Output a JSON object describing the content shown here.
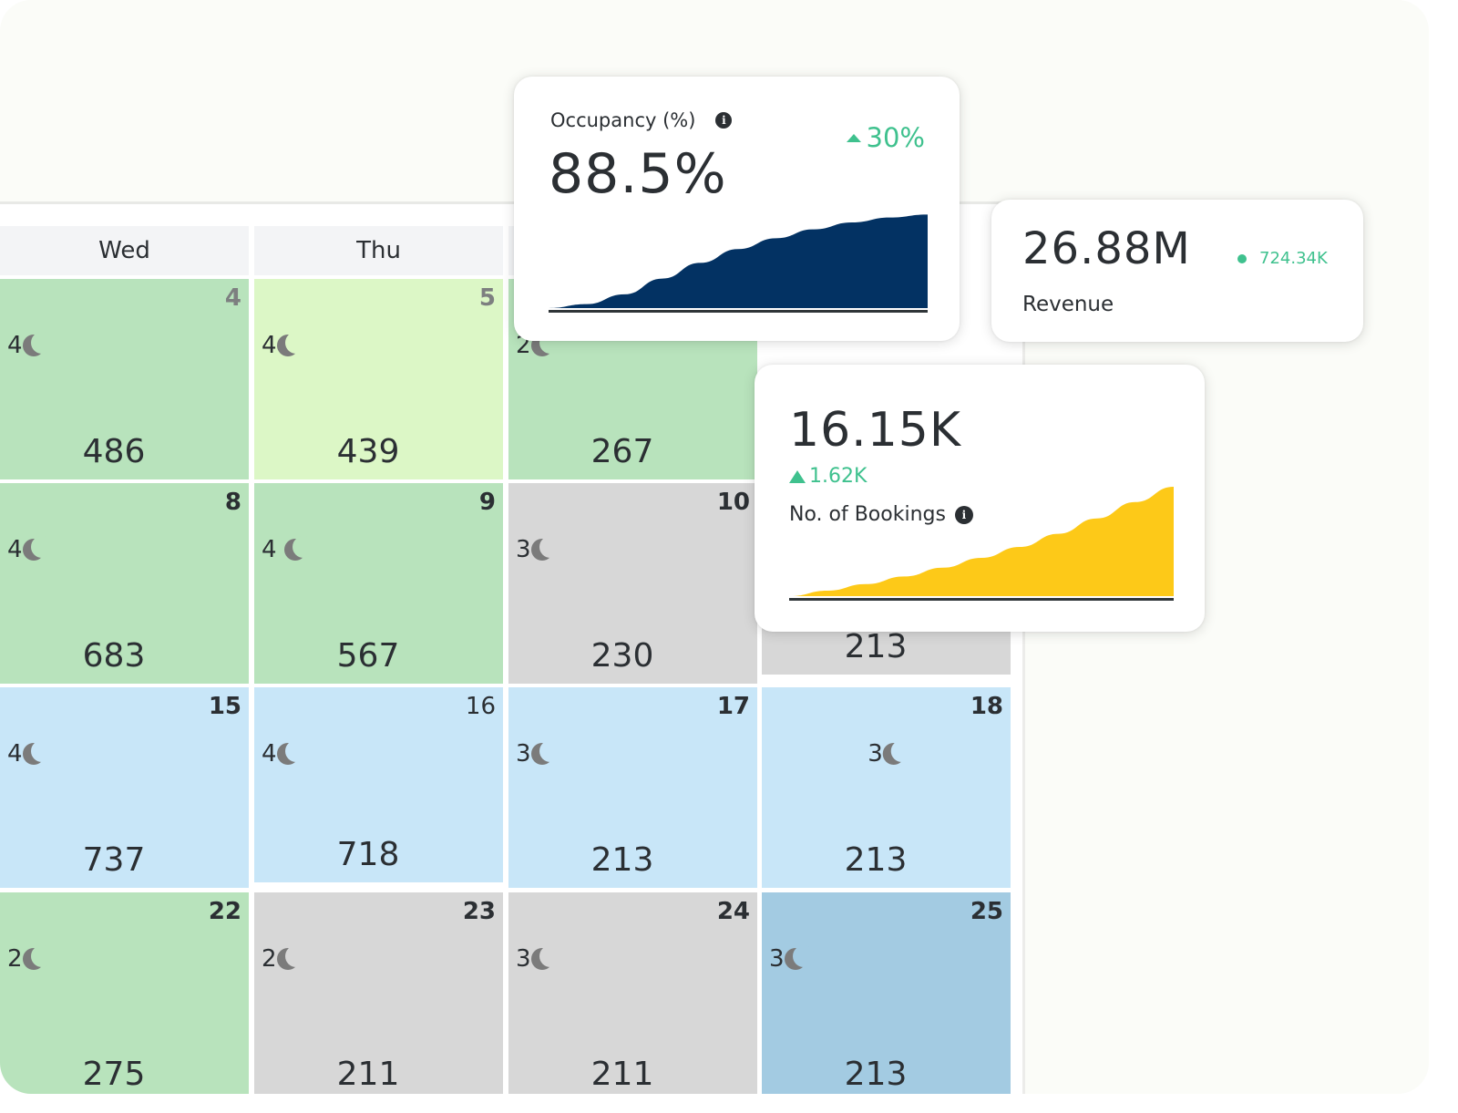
{
  "calendar": {
    "columns": [
      "Wed",
      "Thu"
    ],
    "weeks": [
      [
        {
          "day": "4",
          "nights": "4",
          "price": "486",
          "color": "green",
          "day_style": "muted"
        },
        {
          "day": "5",
          "nights": "4",
          "price": "439",
          "color": "lime",
          "day_style": "muted"
        },
        {
          "day": "",
          "nights": "2",
          "price": "267",
          "color": "green",
          "day_style": ""
        }
      ],
      [
        {
          "day": "8",
          "nights": "4",
          "price": "683",
          "color": "green",
          "day_style": ""
        },
        {
          "day": "9",
          "nights": "4",
          "price": "567",
          "color": "green",
          "day_style": ""
        },
        {
          "day": "10",
          "nights": "3",
          "price": "230",
          "color": "gray",
          "day_style": ""
        },
        {
          "day": "",
          "nights": "",
          "price": "213",
          "color": "gray",
          "day_style": ""
        }
      ],
      [
        {
          "day": "15",
          "nights": "4",
          "price": "737",
          "color": "blue",
          "day_style": ""
        },
        {
          "day": "16",
          "nights": "4",
          "price": "718",
          "color": "blue",
          "day_style": "light"
        },
        {
          "day": "17",
          "nights": "3",
          "price": "213",
          "color": "blue",
          "day_style": ""
        },
        {
          "day": "18",
          "nights": "3",
          "price": "213",
          "color": "blue",
          "day_style": ""
        }
      ],
      [
        {
          "day": "22",
          "nights": "2",
          "price": "275",
          "color": "green",
          "day_style": ""
        },
        {
          "day": "23",
          "nights": "2",
          "price": "211",
          "color": "gray",
          "day_style": ""
        },
        {
          "day": "24",
          "nights": "3",
          "price": "211",
          "color": "gray",
          "day_style": ""
        },
        {
          "day": "25",
          "nights": "3",
          "price": "213",
          "color": "steel",
          "day_style": ""
        }
      ]
    ],
    "colors": {
      "green": "#b8e3bc",
      "lime": "#dcf7c6",
      "gray": "#d7d7d7",
      "blue": "#c8e6f8",
      "steel": "#a3cbe2"
    }
  },
  "occupancy_card": {
    "label": "Occupancy (%)",
    "info_icon": "i",
    "value": "88.5%",
    "delta": "30%",
    "delta_direction": "up",
    "accent": "#3fc18e",
    "chart_color": "#033263"
  },
  "revenue_card": {
    "value": "26.88M",
    "delta": "724.34K",
    "label": "Revenue",
    "accent": "#3fc18e"
  },
  "bookings_card": {
    "value": "16.15K",
    "delta": "1.62K",
    "delta_direction": "up",
    "label": "No. of Bookings",
    "info_icon": "i",
    "chart_color": "#fdc918"
  },
  "chart_data": [
    {
      "type": "area",
      "title": "Occupancy (%)",
      "x": [
        0,
        1,
        2,
        3,
        4,
        5,
        6,
        7,
        8,
        9,
        10
      ],
      "values": [
        0,
        4,
        14,
        30,
        46,
        60,
        71,
        80,
        87,
        92,
        95
      ],
      "ylim": [
        0,
        100
      ],
      "grid": false,
      "xlabel": "",
      "ylabel": ""
    },
    {
      "type": "area",
      "title": "No. of Bookings",
      "x": [
        0,
        1,
        2,
        3,
        4,
        5,
        6,
        7,
        8,
        9,
        10
      ],
      "values": [
        0,
        5,
        11,
        18,
        26,
        35,
        45,
        57,
        71,
        86,
        100
      ],
      "ylim": [
        0,
        100
      ],
      "grid": false,
      "xlabel": "",
      "ylabel": ""
    }
  ]
}
